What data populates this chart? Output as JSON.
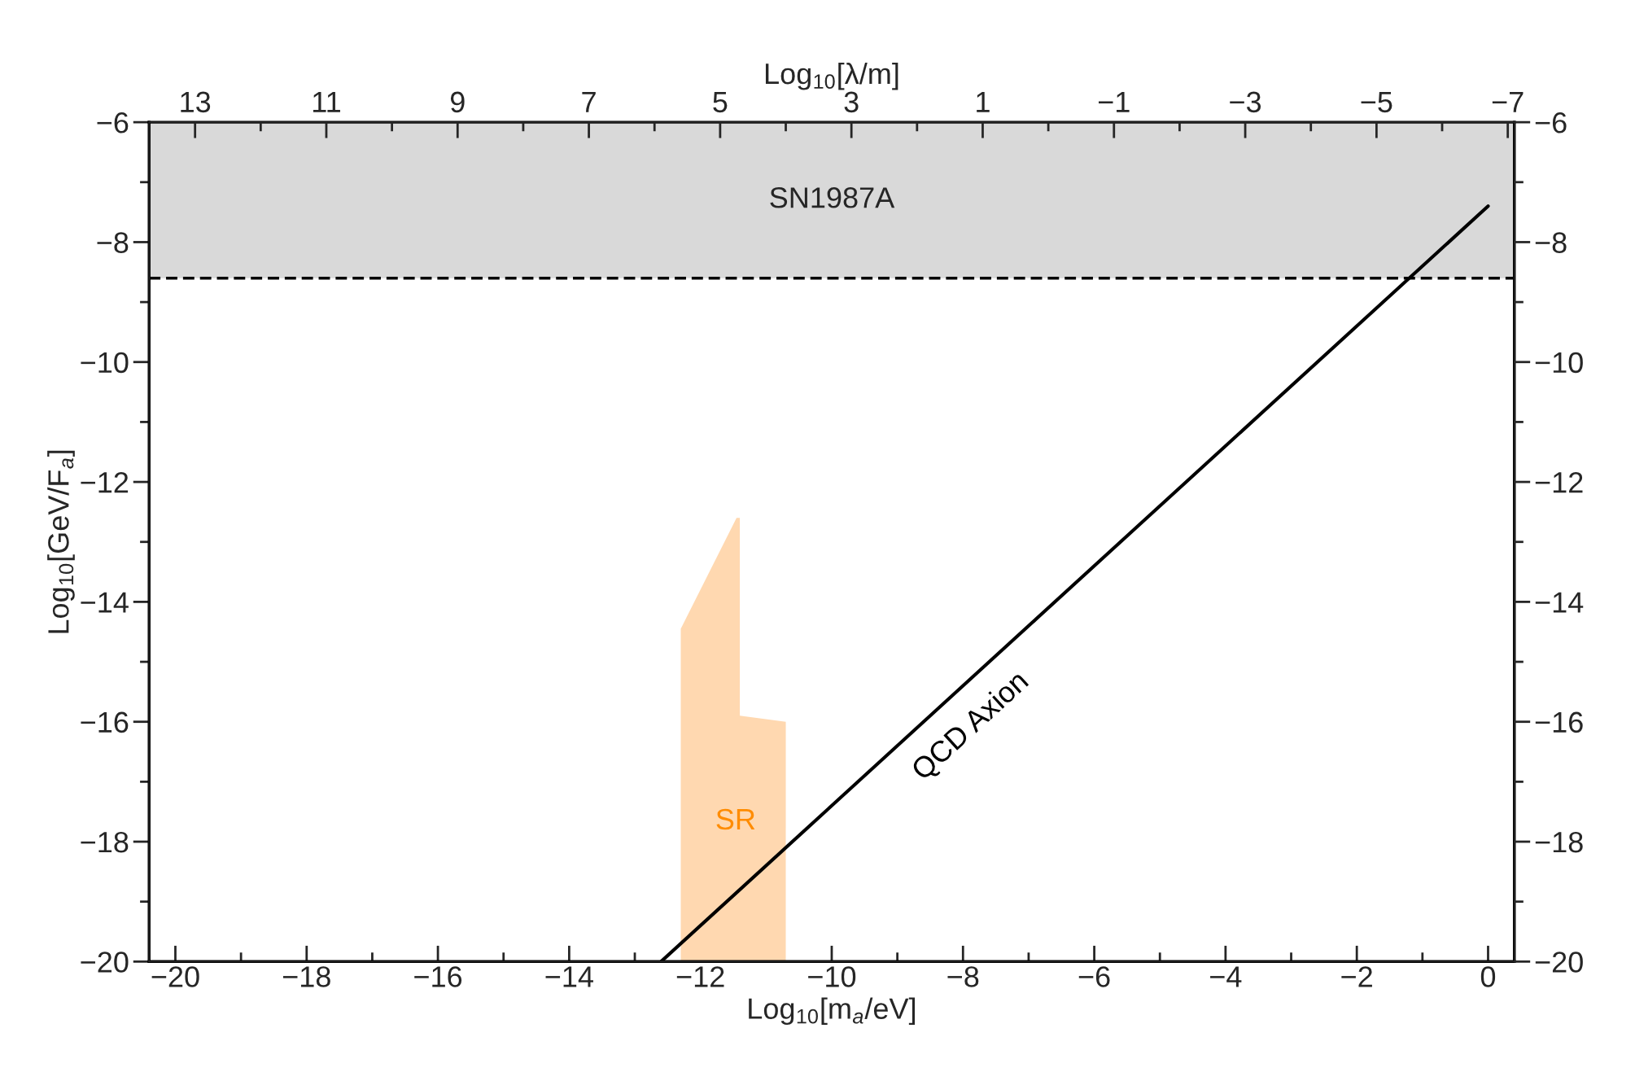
{
  "chart_data": {
    "type": "line",
    "xlabel": "Log$_{10}$[m$_{a}$/eV]",
    "ylabel": "Log$_{10}$[GeV/F$_{a}$]",
    "x2label": "Log$_{10}$[λ/m]",
    "xlim": [
      -20.4,
      0.4
    ],
    "xticks": [
      -20,
      -18,
      -16,
      -14,
      -12,
      -10,
      -8,
      -6,
      -4,
      -2,
      0
    ],
    "ylim": [
      -20,
      -6
    ],
    "yticks": [
      -20,
      -18,
      -16,
      -14,
      -12,
      -10,
      -8,
      -6
    ],
    "y2lim": [
      -20,
      -6
    ],
    "y2ticks": [
      -20,
      -18,
      -16,
      -14,
      -12,
      -10,
      -8,
      -6
    ],
    "x2lim": [
      13.7,
      -7.1
    ],
    "x2ticks": [
      13,
      11,
      9,
      7,
      5,
      3,
      1,
      -1,
      -3,
      -5,
      -7
    ],
    "bands": [
      {
        "axis": "y",
        "from": -8.6,
        "to": -6,
        "label": "SN1987A",
        "color": "#d9d9d9"
      }
    ],
    "ref_lines": [
      {
        "axis": "y",
        "value": -8.6,
        "label": null,
        "color": "#000000",
        "line_style": "dashed"
      }
    ],
    "series": [
      {
        "name": "SR",
        "type": "area",
        "color": "#ffd8b0",
        "x": [
          -12.3,
          -12.3,
          -11.45,
          -11.4,
          -11.4,
          -10.7,
          -10.7
        ],
        "values": [
          -20,
          -14.45,
          -12.6,
          -12.6,
          -15.9,
          -16.0,
          -20
        ]
      },
      {
        "name": "QCD Axion",
        "color": "#000000",
        "x": [
          -12.6,
          0
        ],
        "values": [
          -20,
          -7.4
        ]
      }
    ]
  }
}
